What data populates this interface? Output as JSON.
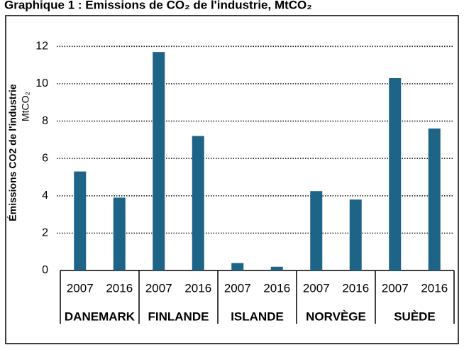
{
  "chart_data": {
    "type": "bar",
    "title": "Graphique 1 : Émissions de CO₂ de l'industrie, MtCO₂",
    "y_label": "Émissions CO2 de l'industrie",
    "y_unit": "MtCO₂",
    "categories": [
      "2007",
      "2016",
      "2007",
      "2016",
      "2007",
      "2016",
      "2007",
      "2016",
      "2007",
      "2016"
    ],
    "groups": [
      "DANEMARK",
      "FINLANDE",
      "ISLANDE",
      "NORVÈGE",
      "SUÈDE"
    ],
    "values": [
      5.3,
      3.9,
      11.7,
      7.2,
      0.4,
      0.2,
      4.25,
      3.8,
      10.3,
      7.6
    ],
    "color": "#1e6487",
    "ylim": [
      0,
      13
    ],
    "yticks": [
      0,
      2,
      4,
      6,
      8,
      10,
      12
    ],
    "grid": true
  }
}
